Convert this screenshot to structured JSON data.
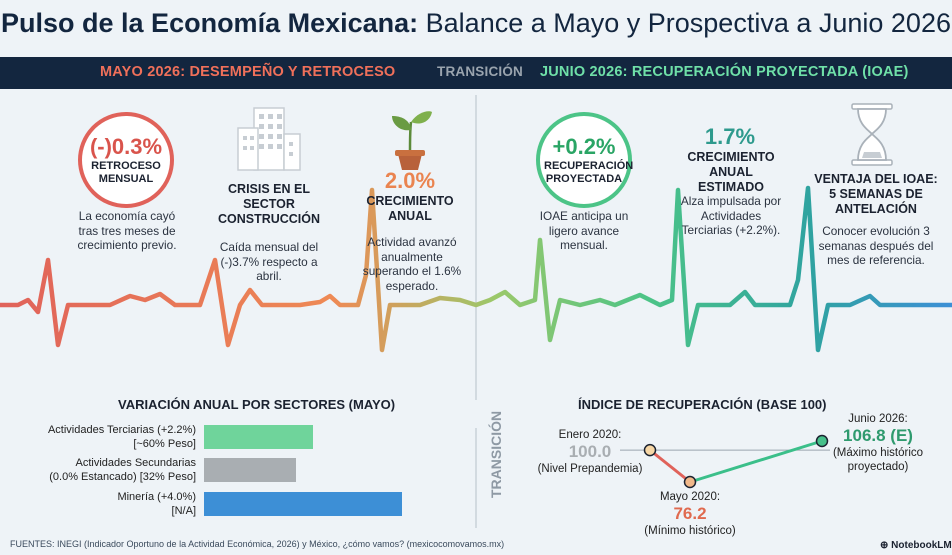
{
  "title": {
    "strong": "Pulso de la Economía Mexicana:",
    "rest": " Balance a Mayo y Prospectiva a Junio 2026"
  },
  "banner": {
    "left": "MAYO 2026: DESEMPEÑO Y RETROCESO",
    "middle": "TRANSICIÓN",
    "right": "JUNIO 2026: RECUPERACIÓN PROYECTADA (IOAE)"
  },
  "colors": {
    "red": "#e0625a",
    "orange": "#ef8a55",
    "green": "#4cc487",
    "teal": "#2f9aa0",
    "blue": "#3d8fd6",
    "navy": "#13263f"
  },
  "may": {
    "retroceso": {
      "value": "(-)0.3%",
      "label": "RETROCESO MENSUAL",
      "desc": "La economía cayó tras tres meses de crecimiento previo."
    },
    "construccion": {
      "icon": "building-icon",
      "label": "CRISIS EN EL SECTOR CONSTRUCCIÓN",
      "desc": "Caída mensual del (-)3.7% respecto a abril."
    },
    "anual": {
      "icon": "sprout-icon",
      "value": "2.0%",
      "label": "CRECIMIENTO ANUAL",
      "desc": "Actividad avanzó anualmente superando el 1.6% esperado."
    }
  },
  "june": {
    "recuperacion": {
      "value": "+0.2%",
      "label": "RECUPERACIÓN PROYECTADA",
      "desc": "IOAE anticipa un ligero avance mensual."
    },
    "estimado": {
      "value": "1.7%",
      "label": "CRECIMIENTO ANUAL ESTIMADO",
      "desc": "Alza impulsada por Actividades Terciarias (+2.2%)."
    },
    "ventaja": {
      "icon": "hourglass-icon",
      "label": "VENTAJA DEL IOAE: 5 SEMANAS DE ANTELACIÓN",
      "desc": "Conocer evolución 3 semanas después del mes de referencia."
    }
  },
  "sectors_title": "VARIACIÓN ANUAL POR SECTORES (MAYO)",
  "recovery_title": "ÍNDICE DE RECUPERACIÓN (BASE 100)",
  "vertical_label": "TRANSICIÓN",
  "chart_data": [
    {
      "type": "bar",
      "orientation": "horizontal",
      "title": "VARIACIÓN ANUAL POR SECTORES (MAYO)",
      "categories": [
        {
          "line1": "Actividades Terciarias (+2.2%)",
          "line2": "[~60% Peso]"
        },
        {
          "line1": "Actividades Secundarias",
          "line2": "(0.0% Estancado) [32% Peso]"
        },
        {
          "line1": "Minería (+4.0%)",
          "line2": "[N/A]"
        }
      ],
      "values": [
        2.2,
        0.0,
        4.0
      ],
      "bar_colors": [
        "#6fd49b",
        "#a9aeb2",
        "#3d8fd6"
      ]
    },
    {
      "type": "line",
      "title": "ÍNDICE DE RECUPERACIÓN (BASE 100)",
      "points": [
        {
          "x": "Enero 2020",
          "y": 100.0,
          "label": "Enero 2020:",
          "value": "100.0",
          "note": "(Nivel Prepandemia)"
        },
        {
          "x": "Mayo 2020",
          "y": 76.2,
          "label": "Mayo 2020:",
          "value": "76.2",
          "note": "(Mínimo histórico)"
        },
        {
          "x": "Junio 2026",
          "y": 106.8,
          "label": "Junio 2026:",
          "value": "106.8 (E)",
          "note": "(Máximo histórico proyectado)"
        }
      ],
      "baseline": 100
    }
  ],
  "footer": "FUENTES: INEGI (Indicador Oportuno de la Actividad Económica, 2026) y México, ¿cómo vamos? (mexicocomovamos.mx)",
  "brand": "NotebookLM"
}
